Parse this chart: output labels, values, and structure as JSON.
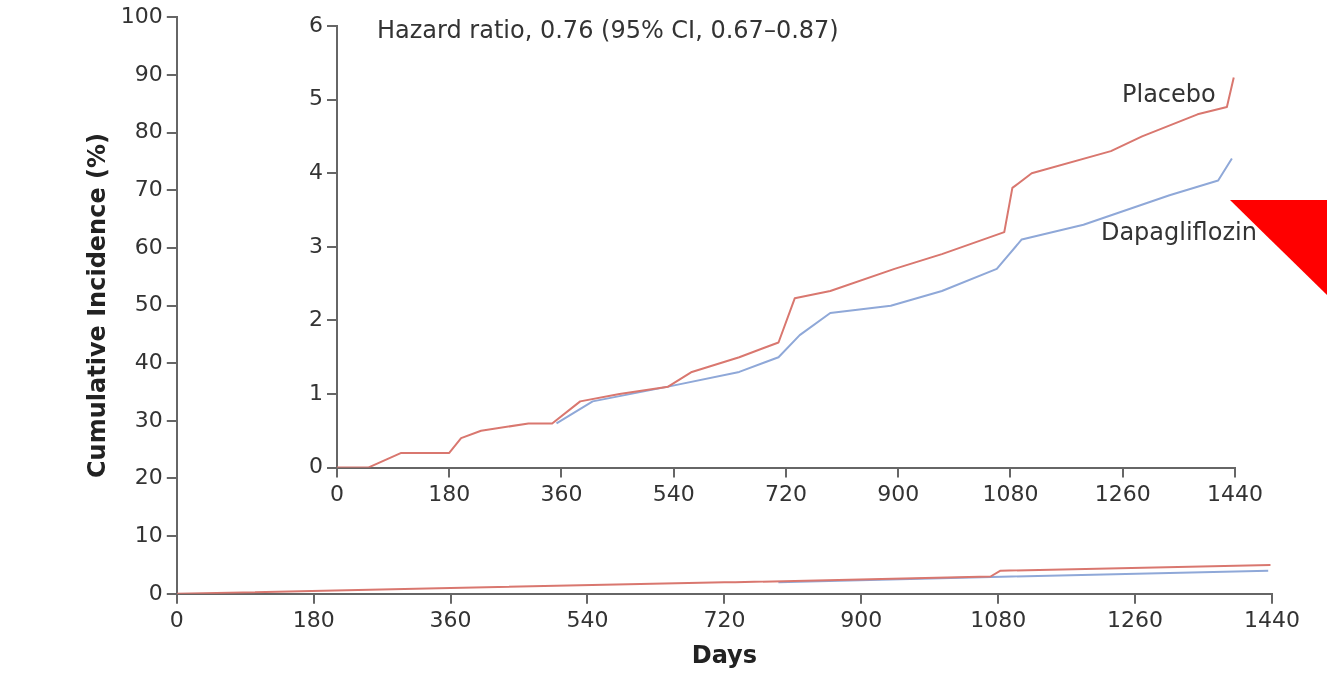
{
  "chart_data": [
    {
      "type": "line",
      "ylabel": "Cumulative Incidence (%)",
      "xlabel": "Days",
      "xlim": [
        0,
        1440
      ],
      "xticks": [
        0,
        180,
        360,
        540,
        720,
        900,
        1080,
        1260,
        1440
      ],
      "ylim": [
        0,
        100
      ],
      "yticks": [
        0,
        10,
        20,
        30,
        40,
        50,
        60,
        70,
        80,
        90,
        100
      ],
      "grid": false,
      "legend": false,
      "marker": "none",
      "series": [
        {
          "color": "#d9776f",
          "x": [
            0,
            360,
            720,
            734,
            1070,
            1083,
            1438
          ],
          "values": [
            0,
            1,
            2,
            2,
            3,
            4,
            5
          ]
        },
        {
          "color": "#8fa8d8",
          "x": [
            791,
            1098,
            1435
          ],
          "values": [
            2,
            3,
            4
          ]
        }
      ]
    },
    {
      "type": "line",
      "annotations": [
        "Hazard ratio, 0.76 (95% CI, 0.67–0.87)"
      ],
      "xlim": [
        0,
        1440
      ],
      "xticks": [
        0,
        180,
        360,
        540,
        720,
        900,
        1080,
        1260,
        1440
      ],
      "ylim": [
        0,
        6
      ],
      "yticks": [
        0,
        1,
        2,
        3,
        4,
        5,
        6
      ],
      "grid": false,
      "legend": false,
      "marker": "none",
      "series": [
        {
          "name": "Placebo",
          "color": "#d9776f",
          "x": [
            0,
            50,
            103,
            180,
            199,
            231,
            307,
            345,
            390,
            453,
            531,
            569,
            645,
            708,
            734,
            791,
            894,
            970,
            1070,
            1083,
            1114,
            1241,
            1291,
            1380,
            1427,
            1438
          ],
          "values": [
            0,
            0,
            0.2,
            0.2,
            0.4,
            0.5,
            0.6,
            0.6,
            0.9,
            1.0,
            1.1,
            1.3,
            1.5,
            1.7,
            2.3,
            2.4,
            2.7,
            2.9,
            3.2,
            3.8,
            4.0,
            4.3,
            4.5,
            4.8,
            4.9,
            5.3
          ]
        },
        {
          "name": "Dapagliflozin",
          "color": "#8fa8d8",
          "x": [
            352,
            410,
            531,
            645,
            708,
            742,
            791,
            888,
            970,
            1058,
            1098,
            1197,
            1335,
            1413,
            1435
          ],
          "values": [
            0.6,
            0.9,
            1.1,
            1.3,
            1.5,
            1.8,
            2.1,
            2.2,
            2.4,
            2.7,
            3.1,
            3.3,
            3.7,
            3.9,
            4.2
          ]
        }
      ]
    }
  ]
}
